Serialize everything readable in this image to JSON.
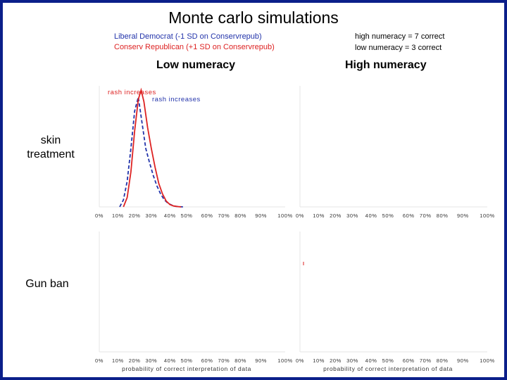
{
  "title": "Monte carlo simulations",
  "legend": [
    {
      "label": "Liberal Democrat (-1 SD on Conservrepub)",
      "color": "#2233aa"
    },
    {
      "label": "Conserv Republican (+1 SD on Conservrepub)",
      "color": "#dd2222"
    }
  ],
  "notes": [
    "high numeracy = 7 correct",
    "low numeracy =  3 correct"
  ],
  "columns": [
    "Low numeracy",
    "High numeracy"
  ],
  "rows": [
    "skin treatment",
    "Gun ban"
  ],
  "chart_data": {
    "type": "line",
    "x_ticks": [
      "0%",
      "10%",
      "20%",
      "30%",
      "40%",
      "50%",
      "60%",
      "70%",
      "80%",
      "90%",
      "100%"
    ],
    "xlabel": "probability of correct interpretation of data",
    "panels": [
      {
        "row": "skin treatment",
        "column": "Low numeracy",
        "annotations": [
          {
            "text": "rash increases",
            "color": "#dd2222"
          },
          {
            "text": "rash increases",
            "color": "#2233aa"
          }
        ],
        "series": [
          {
            "color": "#2233aa",
            "style": "dashed",
            "x": [
              11,
              13,
              15,
              17,
              19,
              21,
              23,
              25,
              27,
              29,
              31,
              33,
              35,
              37,
              39,
              41,
              43,
              45
            ],
            "y": [
              0,
              0.06,
              0.22,
              0.5,
              0.82,
              0.94,
              0.72,
              0.5,
              0.38,
              0.27,
              0.18,
              0.11,
              0.06,
              0.03,
              0.015,
              0.005,
              0.002,
              0
            ]
          },
          {
            "color": "#dd2222",
            "style": "solid",
            "x": [
              13,
              15,
              17,
              19,
              21,
              22.5,
              24,
              26,
              28,
              30,
              32,
              34,
              36,
              38,
              40,
              42,
              44
            ],
            "y": [
              0,
              0.08,
              0.3,
              0.65,
              0.92,
              1.0,
              0.9,
              0.68,
              0.5,
              0.34,
              0.2,
              0.11,
              0.05,
              0.02,
              0.008,
              0.003,
              0
            ]
          }
        ]
      },
      {
        "row": "skin treatment",
        "column": "High numeracy",
        "annotations": [],
        "series": []
      },
      {
        "row": "Gun ban",
        "column": "Low numeracy",
        "annotations": [],
        "series": []
      },
      {
        "row": "Gun ban",
        "column": "High numeracy",
        "annotations": [],
        "series": []
      }
    ]
  }
}
